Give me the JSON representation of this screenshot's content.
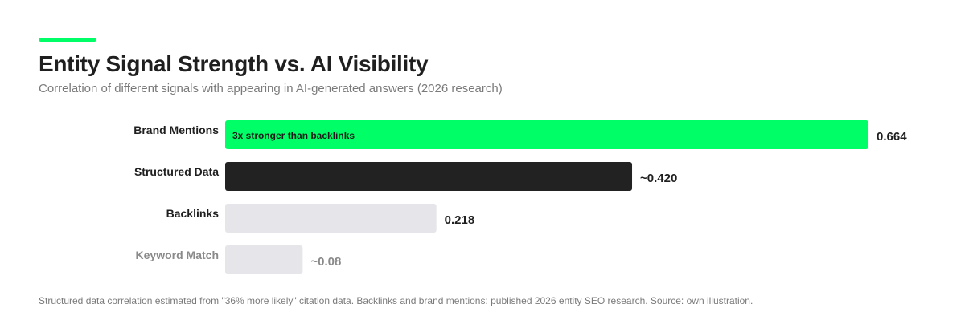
{
  "header": {
    "title": "Entity Signal Strength vs. AI Visibility",
    "subtitle": "Correlation of different signals with appearing in AI-generated answers (2026 research)"
  },
  "footnote": "Structured data correlation estimated from \"36% more likely\" citation data. Backlinks and brand mentions: published 2026 entity SEO research. Source: own illustration.",
  "colors": {
    "accent": "#00ff66",
    "dark": "#222222",
    "light": "#e5e5ea",
    "text": "#1f1f1f",
    "muted": "#8a8a8a"
  },
  "chart_data": {
    "type": "bar",
    "orientation": "horizontal",
    "title": "Entity Signal Strength vs. AI Visibility",
    "subtitle": "Correlation of different signals with appearing in AI-generated answers (2026 research)",
    "categories": [
      "Brand Mentions",
      "Structured Data",
      "Backlinks",
      "Keyword Match"
    ],
    "values": [
      0.664,
      0.42,
      0.218,
      0.08
    ],
    "value_labels": [
      "0.664",
      "~0.420",
      "0.218",
      "~0.08"
    ],
    "bar_colors": [
      "#00ff66",
      "#222222",
      "#e5e5ea",
      "#e5e5ea"
    ],
    "label_colors": [
      "#1f1f1f",
      "#1f1f1f",
      "#1f1f1f",
      "#8a8a8a"
    ],
    "annotations": [
      {
        "category": "Brand Mentions",
        "text": "3x stronger than backlinks"
      }
    ],
    "xlim": [
      0,
      0.664
    ],
    "grid": false,
    "legend": "none"
  }
}
